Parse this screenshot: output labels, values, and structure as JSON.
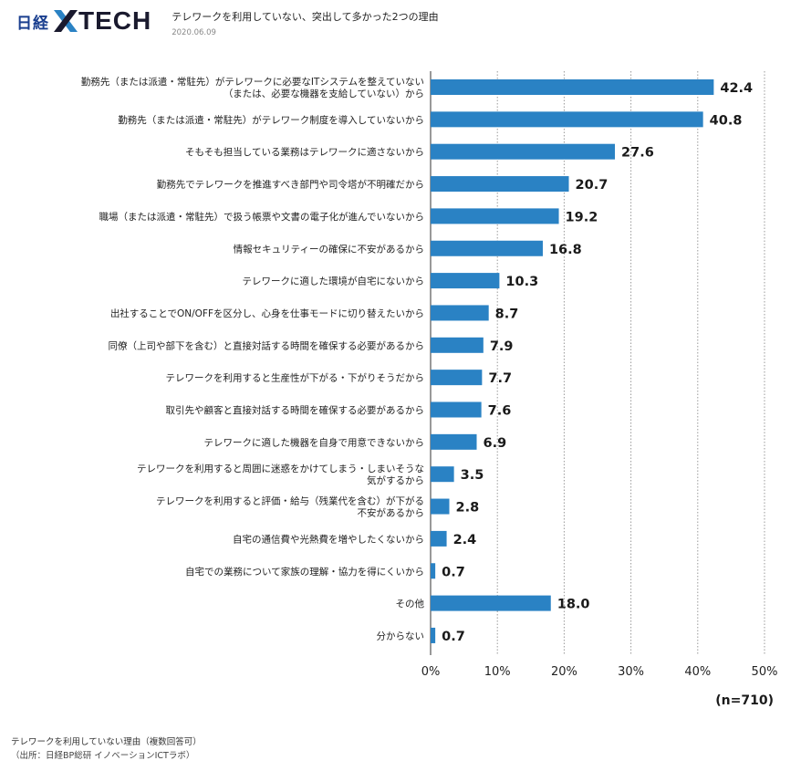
{
  "header": {
    "logo_nikkei": "日経",
    "logo_tech": "TECH",
    "title": "テレワークを利用していない、突出して多かった2つの理由",
    "date": "2020.06.09"
  },
  "chart_data": {
    "type": "bar",
    "orientation": "horizontal",
    "categories": [
      "勤務先（または派遣・常駐先）がテレワークに必要なITシステムを整えていない\n（または、必要な機器を支給していない）から",
      "勤務先（または派遣・常駐先）がテレワーク制度を導入していないから",
      "そもそも担当している業務はテレワークに適さないから",
      "勤務先でテレワークを推進すべき部門や司令塔が不明確だから",
      "職場（または派遣・常駐先）で扱う帳票や文書の電子化が進んでいないから",
      "情報セキュリティーの確保に不安があるから",
      "テレワークに適した環境が自宅にないから",
      "出社することでON/OFFを区分し、心身を仕事モードに切り替えたいから",
      "同僚（上司や部下を含む）と直接対話する時間を確保する必要があるから",
      "テレワークを利用すると生産性が下がる・下がりそうだから",
      "取引先や顧客と直接対話する時間を確保する必要があるから",
      "テレワークに適した機器を自身で用意できないから",
      "テレワークを利用すると周囲に迷惑をかけてしまう・しまいそうな\n気がするから",
      "テレワークを利用すると評価・給与（残業代を含む）が下がる\n不安があるから",
      "自宅の通信費や光熱費を増やしたくないから",
      "自宅での業務について家族の理解・協力を得にくいから",
      "その他",
      "分からない"
    ],
    "values": [
      42.4,
      40.8,
      27.6,
      20.7,
      19.2,
      16.8,
      10.3,
      8.7,
      7.9,
      7.7,
      7.6,
      6.9,
      3.5,
      2.8,
      2.4,
      0.7,
      18.0,
      0.7
    ],
    "value_labels": [
      "42.4",
      "40.8",
      "27.6",
      "20.7",
      "19.2",
      "16.8",
      "10.3",
      "8.7",
      "7.9",
      "7.7",
      "7.6",
      "6.9",
      "3.5",
      "2.8",
      "2.4",
      "0.7",
      "18.0",
      "0.7"
    ],
    "xlim": [
      0,
      50
    ],
    "xticks": [
      "0%",
      "10%",
      "20%",
      "30%",
      "40%",
      "50%"
    ],
    "grid": "vertical dotted",
    "n_label": "(n=710)",
    "bar_color": "#2a82c4"
  },
  "footer": {
    "caption": "テレワークを利用していない理由（複数回答可）",
    "source": "（出所：日経BP総研 イノベーションICTラボ）"
  }
}
